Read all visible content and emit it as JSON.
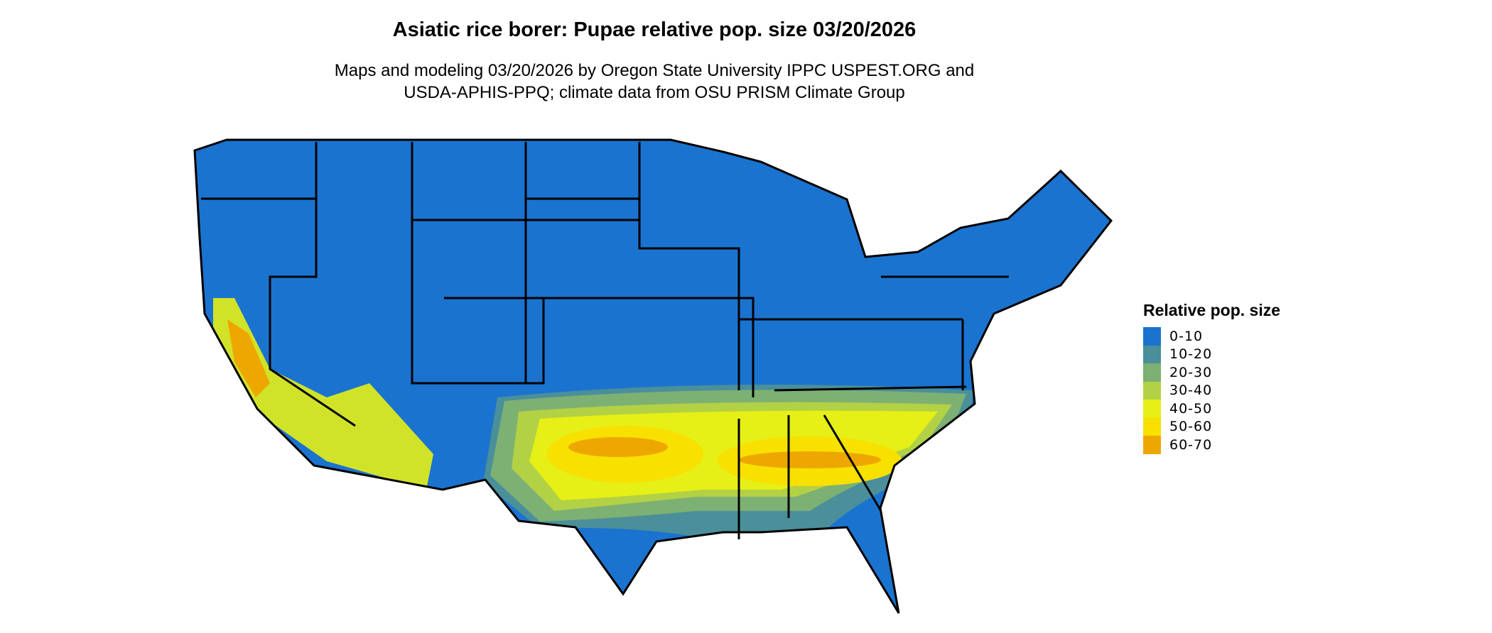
{
  "title": "Asiatic rice borer: Pupae relative pop. size 03/20/2026",
  "subtitle_lines": [
    "Maps and modeling 03/20/2026 by Oregon State University IPPC USPEST.ORG and",
    "USDA-APHIS-PPQ; climate data from OSU PRISM Climate Group"
  ],
  "legend": {
    "title": "Relative pop. size",
    "items": [
      {
        "label": "0-10",
        "color": "#1a73cf"
      },
      {
        "label": "10-20",
        "color": "#4a8f9a"
      },
      {
        "label": "20-30",
        "color": "#7db073"
      },
      {
        "label": "30-40",
        "color": "#b3d145"
      },
      {
        "label": "40-50",
        "color": "#e6ef16"
      },
      {
        "label": "50-60",
        "color": "#f8e000"
      },
      {
        "label": "60-70",
        "color": "#eea700"
      }
    ]
  }
}
